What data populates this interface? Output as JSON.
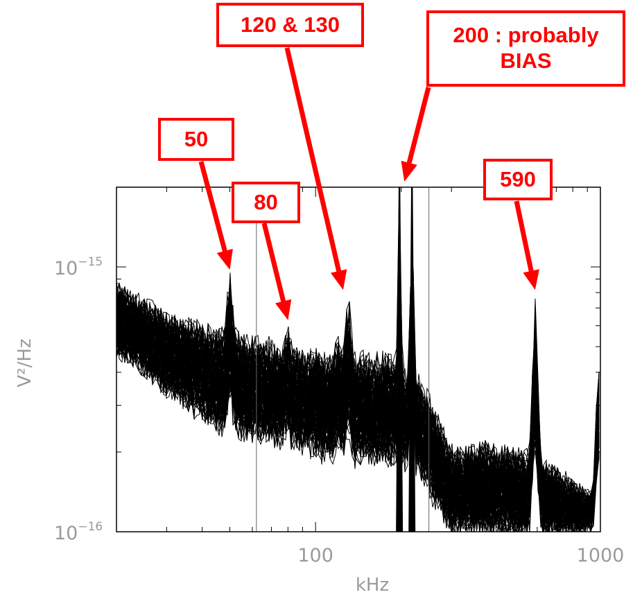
{
  "chart_data": {
    "type": "line",
    "title": "",
    "xlabel": "kHz",
    "ylabel": "V²/Hz",
    "xscale": "log",
    "yscale": "log",
    "xlim": [
      20,
      1000
    ],
    "ylim": [
      1e-16,
      2e-15
    ],
    "x_ticks": [
      {
        "value": 100,
        "label": "100"
      },
      {
        "value": 1000,
        "label": "1000"
      }
    ],
    "y_ticks": [
      {
        "value": 1e-16,
        "label_base": "10",
        "label_exp": "−16"
      },
      {
        "value": 1e-15,
        "label_base": "10",
        "label_exp": "−15"
      }
    ],
    "vertical_reference_lines_khz": [
      62,
      250
    ],
    "series_description_count": 100,
    "baseline": {
      "x": [
        20,
        30,
        45,
        60,
        80,
        100,
        120,
        150,
        180,
        230,
        300,
        400,
        500,
        700,
        1000
      ],
      "y_upper": [
        8.5e-16,
        6.5e-16,
        5.6e-16,
        5.2e-16,
        4.8e-16,
        4.6e-16,
        4.4e-16,
        4.5e-16,
        4.4e-16,
        3.8e-16,
        2e-16,
        2.1e-16,
        2e-16,
        1.7e-16,
        1.3e-16
      ],
      "y_lower": [
        4.8e-16,
        3.4e-16,
        2.5e-16,
        2.3e-16,
        2.2e-16,
        2e-16,
        1.9e-16,
        1.9e-16,
        1.9e-16,
        1.7e-16,
        1e-16,
        1e-16,
        1e-16,
        1e-16,
        1e-16
      ]
    },
    "peaks": [
      {
        "x": 50,
        "y": 9.3e-16
      },
      {
        "x": 80,
        "y": 5.5e-16
      },
      {
        "x": 120,
        "y": 5.3e-16
      },
      {
        "x": 130,
        "y": 7.3e-16
      },
      {
        "x": 197,
        "y": 2e-15
      },
      {
        "x": 218,
        "y": 2e-15
      },
      {
        "x": 590,
        "y": 7.3e-16
      },
      {
        "x": 985,
        "y": 4.3e-16
      }
    ],
    "annotations": [
      {
        "id": "ann-50",
        "text": "50",
        "target_x": 50,
        "target_y": 9.3e-16
      },
      {
        "id": "ann-80",
        "text": "80",
        "target_x": 80,
        "target_y": 6e-16
      },
      {
        "id": "ann-120-130",
        "text": "120 & 130",
        "target_x": 125,
        "target_y": 7.8e-16
      },
      {
        "id": "ann-200",
        "text": "200 : probably\nBIAS",
        "target_x": 205,
        "target_y": 2e-15
      },
      {
        "id": "ann-590",
        "text": "590",
        "target_x": 590,
        "target_y": 7.8e-16
      }
    ],
    "colors": {
      "trace": "#000000",
      "annotation": "#ff0000",
      "axis_text": "#9a9a9a",
      "frame": "#000000"
    }
  }
}
